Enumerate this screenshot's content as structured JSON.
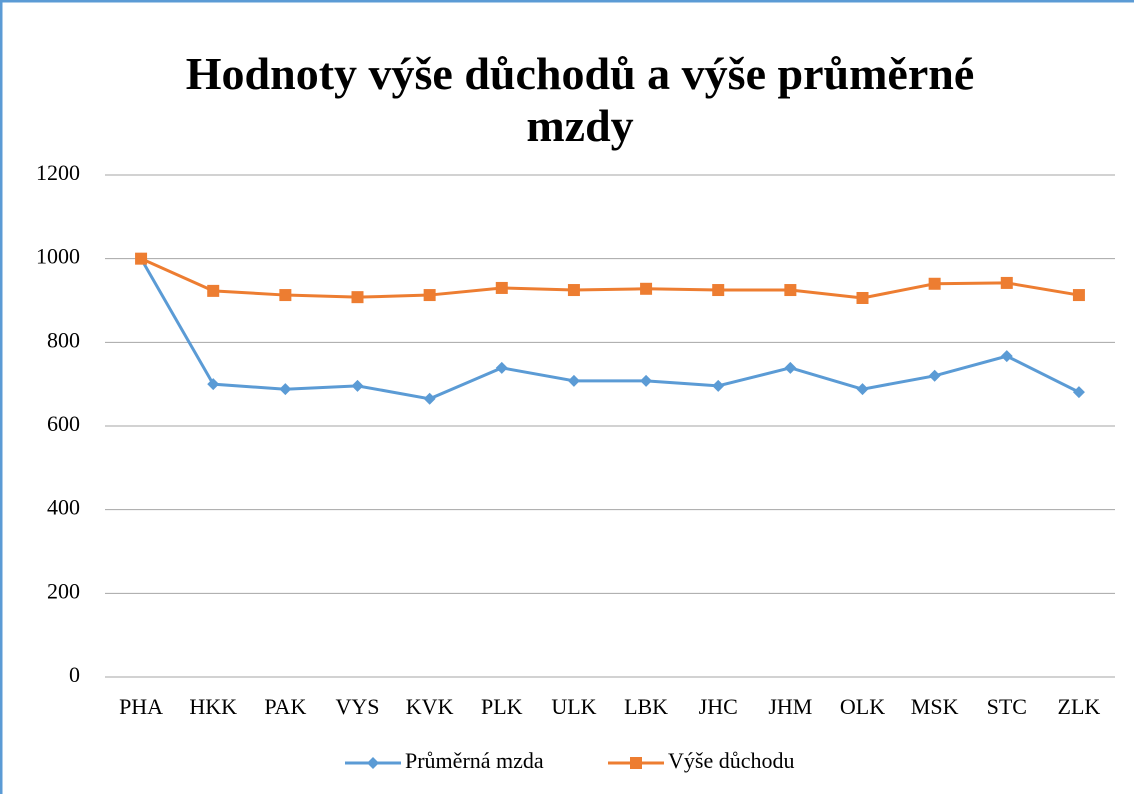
{
  "chart_data": {
    "type": "line",
    "title": "Hodnoty výše důchodů a výše průměrné mzdy",
    "categories": [
      "PHA",
      "HKK",
      "PAK",
      "VYS",
      "KVK",
      "PLK",
      "ULK",
      "LBK",
      "JHC",
      "JHM",
      "OLK",
      "MSK",
      "STC",
      "ZLK"
    ],
    "series": [
      {
        "name": "Průměrná mzda",
        "color": "#5b9bd5",
        "marker": "diamond",
        "values": [
          1000,
          700,
          688,
          696,
          665,
          739,
          708,
          708,
          696,
          739,
          688,
          720,
          767,
          681
        ]
      },
      {
        "name": "Výše důchodu",
        "color": "#ed7d31",
        "marker": "square",
        "values": [
          1000,
          923,
          913,
          908,
          913,
          930,
          925,
          928,
          925,
          925,
          906,
          940,
          942,
          913
        ]
      }
    ],
    "ylim": [
      0,
      1200
    ],
    "yticks": [
      0,
      200,
      400,
      600,
      800,
      1000,
      1200
    ],
    "grid": true,
    "legend": "bottom"
  }
}
